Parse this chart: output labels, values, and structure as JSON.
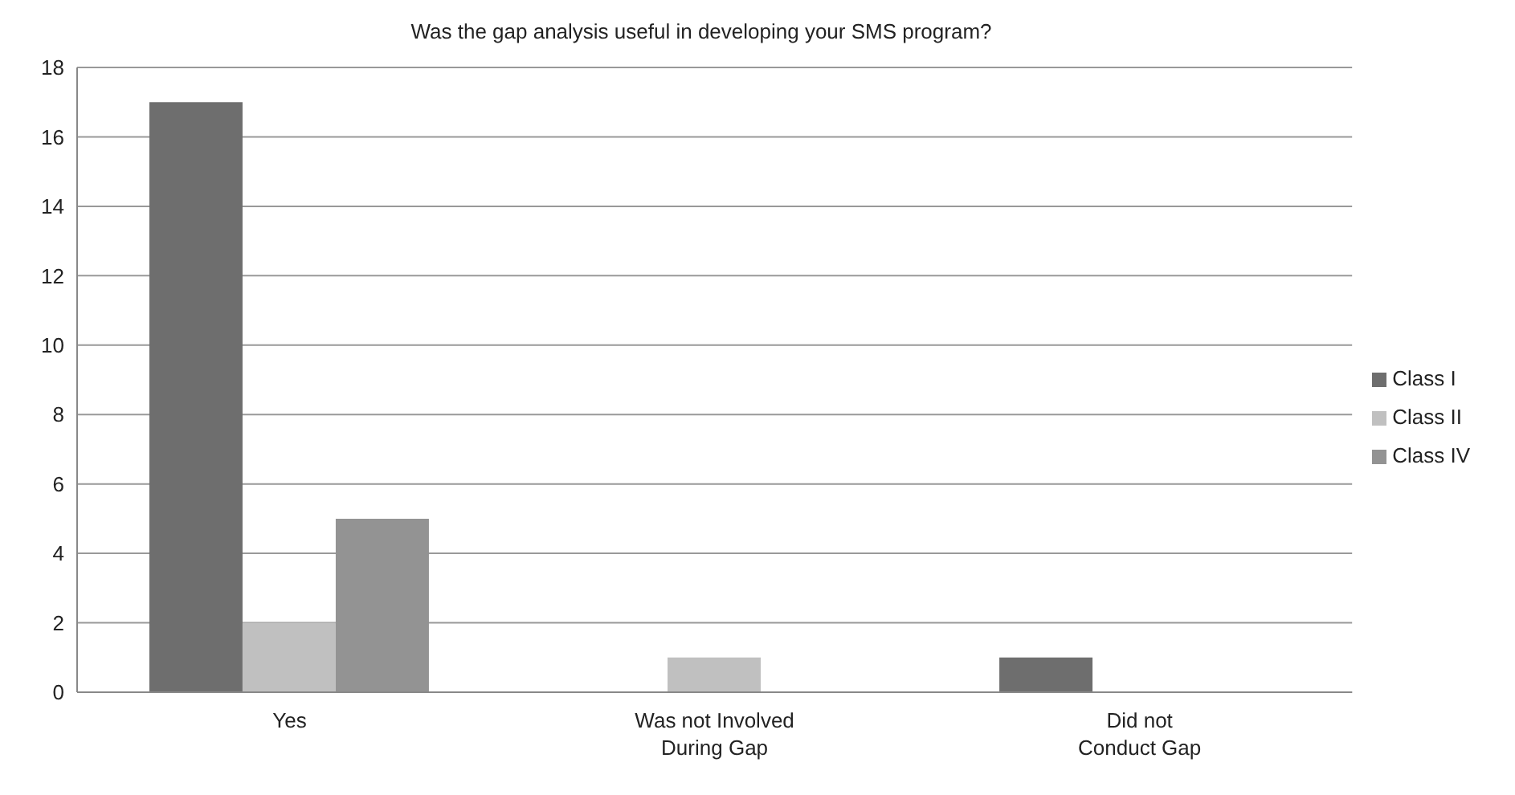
{
  "chart_data": {
    "type": "bar",
    "title": "Was the gap analysis useful in developing your SMS program?",
    "categories": [
      "Yes",
      "Was not Involved\nDuring Gap",
      "Did not\nConduct Gap"
    ],
    "series": [
      {
        "name": "Class I",
        "color": "#6e6e6e",
        "values": [
          17,
          0,
          1
        ]
      },
      {
        "name": "Class II",
        "color": "#c0c0c0",
        "values": [
          2,
          1,
          0
        ]
      },
      {
        "name": "Class IV",
        "color": "#939393",
        "values": [
          5,
          0,
          0
        ]
      }
    ],
    "ylim": [
      0,
      18
    ],
    "yticks": [
      0,
      2,
      4,
      6,
      8,
      10,
      12,
      14,
      16,
      18
    ],
    "grid": "y",
    "legend": "right"
  }
}
